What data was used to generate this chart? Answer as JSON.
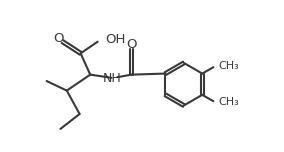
{
  "bg_color": "#ffffff",
  "line_color": "#3a3a3a",
  "text_color": "#3a3a3a",
  "line_width": 1.5,
  "font_size": 8.5,
  "figsize": [
    2.84,
    1.52
  ],
  "dpi": 100,
  "xlim": [
    0,
    10
  ],
  "ylim": [
    0,
    5.5
  ]
}
